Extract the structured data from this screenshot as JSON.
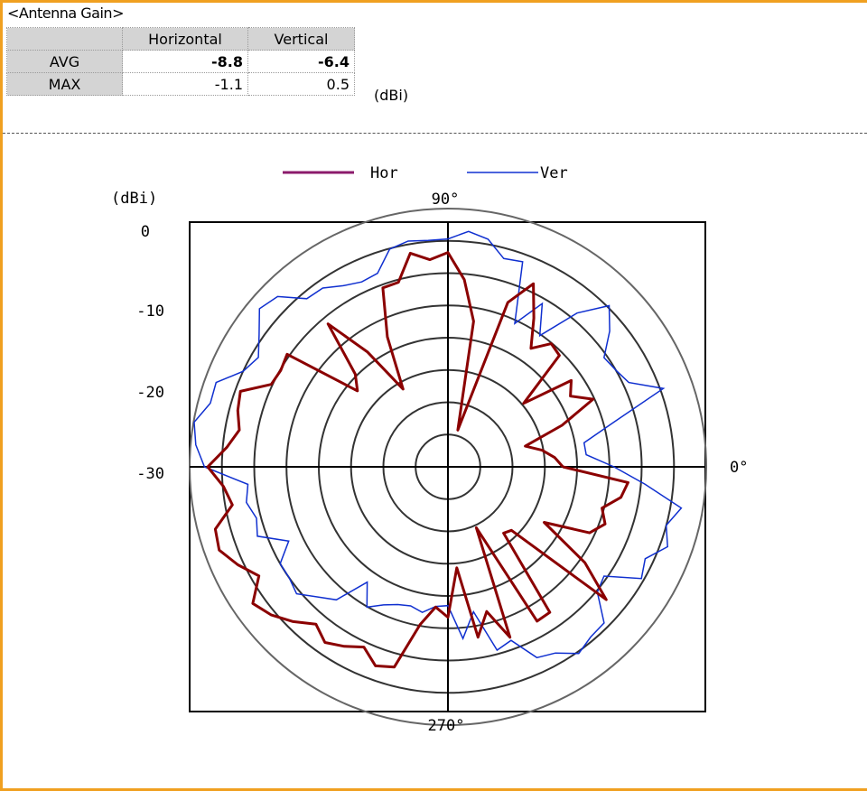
{
  "page": {
    "title": "<Antenna Gain>",
    "table": {
      "headers": [
        "",
        "Horizontal",
        "Vertical"
      ],
      "rows": [
        {
          "label": "AVG",
          "horizontal": "-8.8",
          "vertical": "-6.4"
        },
        {
          "label": "MAX",
          "horizontal": "-1.1",
          "vertical": "0.5"
        }
      ],
      "unit": "(dBi)"
    }
  },
  "chart_data": {
    "type": "polar-line",
    "radial_axis": {
      "label": "(dBi)",
      "ticks": [
        "0",
        "-10",
        "-20",
        "-30"
      ],
      "range": [
        -40,
        0
      ]
    },
    "angle_labels": {
      "0": "0°",
      "90": "90°",
      "270": "270°"
    },
    "colors": {
      "Hor": "#8b0000",
      "Ver": "#1030d0",
      "legend_hor": "#8b1a6b"
    },
    "series": [
      {
        "name": "Hor",
        "points": [
          [
            0,
            -22.2
          ],
          [
            5,
            -23.4
          ],
          [
            10,
            -25.2
          ],
          [
            15,
            -27.6
          ],
          [
            20,
            -21.2
          ],
          [
            25,
            -15.2
          ],
          [
            30,
            -18.1
          ],
          [
            35,
            -16.7
          ],
          [
            40,
            -24.7
          ],
          [
            45,
            -15.6
          ],
          [
            50,
            -15.1
          ],
          [
            55,
            -17.6
          ],
          [
            60,
            -13.4
          ],
          [
            65,
            -8.7
          ],
          [
            70,
            -12.9
          ],
          [
            75,
            -34.1
          ],
          [
            80,
            -17.1
          ],
          [
            85,
            -10.9
          ],
          [
            90,
            -6.8
          ],
          [
            95,
            -7.8
          ],
          [
            100,
            -6.4
          ],
          [
            105,
            -10.4
          ],
          [
            110,
            -10.5
          ],
          [
            115,
            -17.8
          ],
          [
            120,
            -26.1
          ],
          [
            125,
            -18.3
          ],
          [
            130,
            -11.1
          ],
          [
            135,
            -19.7
          ],
          [
            140,
            -21.7
          ],
          [
            145,
            -9.6
          ],
          [
            150,
            -10.1
          ],
          [
            155,
            -9.8
          ],
          [
            160,
            -5.8
          ],
          [
            165,
            -6.3
          ],
          [
            170,
            -7.2
          ],
          [
            175,
            -5.6
          ],
          [
            180,
            -2.8
          ],
          [
            185,
            -5.1
          ],
          [
            190,
            -6.1
          ],
          [
            195,
            -2.7
          ],
          [
            200,
            -2.3
          ],
          [
            205,
            -4.1
          ],
          [
            210,
            -6.2
          ],
          [
            215,
            -3.1
          ],
          [
            220,
            -4.3
          ],
          [
            225,
            -6.1
          ],
          [
            230,
            -8.2
          ],
          [
            235,
            -6.8
          ],
          [
            240,
            -7.9
          ],
          [
            245,
            -9.2
          ],
          [
            250,
            -7.2
          ],
          [
            255,
            -7.9
          ],
          [
            260,
            -15.2
          ],
          [
            265,
            -18.2
          ],
          [
            270,
            -16.7
          ],
          [
            275,
            -24.3
          ],
          [
            280,
            -13.2
          ],
          [
            285,
            -16.8
          ],
          [
            290,
            -11.9
          ],
          [
            295,
            -29.6
          ],
          [
            300,
            -12.4
          ],
          [
            305,
            -12.5
          ],
          [
            310,
            -26.6
          ],
          [
            315,
            -26.1
          ],
          [
            320,
            -8.0
          ],
          [
            325,
            -14.1
          ],
          [
            330,
            -22.8
          ],
          [
            335,
            -15.8
          ],
          [
            340,
            -14.1
          ],
          [
            345,
            -15.3
          ],
          [
            350,
            -12.8
          ],
          [
            355,
            -12.0
          ],
          [
            360,
            -22.2
          ]
        ]
      },
      {
        "name": "Ver",
        "points": [
          [
            0,
            -14.3
          ],
          [
            5,
            -18.5
          ],
          [
            10,
            -18.6
          ],
          [
            15,
            -13.5
          ],
          [
            20,
            -4.5
          ],
          [
            25,
            -9.1
          ],
          [
            30,
            -10.0
          ],
          [
            35,
            -10.5
          ],
          [
            40,
            -7.3
          ],
          [
            45,
            -4.7
          ],
          [
            50,
            -8.9
          ],
          [
            55,
            -15.2
          ],
          [
            60,
            -10.8
          ],
          [
            65,
            -15.5
          ],
          [
            70,
            -6.2
          ],
          [
            75,
            -6.6
          ],
          [
            80,
            -4.2
          ],
          [
            85,
            -3.4
          ],
          [
            90,
            -4.7
          ],
          [
            95,
            -4.8
          ],
          [
            100,
            -4.5
          ],
          [
            105,
            -5.1
          ],
          [
            110,
            -8.1
          ],
          [
            115,
            -8.4
          ],
          [
            120,
            -7.6
          ],
          [
            125,
            -6.2
          ],
          [
            130,
            -6.0
          ],
          [
            135,
            -2.7
          ],
          [
            140,
            -1.9
          ],
          [
            145,
            -4.3
          ],
          [
            150,
            -6.1
          ],
          [
            155,
            -5.0
          ],
          [
            160,
            -1.8
          ],
          [
            165,
            -1.9
          ],
          [
            170,
            -0.1
          ],
          [
            175,
            -0.8
          ],
          [
            180,
            -2.3
          ],
          [
            185,
            -8.9
          ],
          [
            190,
            -8.3
          ],
          [
            195,
            -9.3
          ],
          [
            200,
            -8.6
          ],
          [
            205,
            -12.8
          ],
          [
            210,
            -10.0
          ],
          [
            215,
            -10.0
          ],
          [
            220,
            -9.4
          ],
          [
            225,
            -11.5
          ],
          [
            230,
            -13.1
          ],
          [
            235,
            -18.2
          ],
          [
            240,
            -14.9
          ],
          [
            245,
            -16.4
          ],
          [
            250,
            -17.3
          ],
          [
            255,
            -17.7
          ],
          [
            260,
            -17.1
          ],
          [
            265,
            -18.3
          ],
          [
            270,
            -18.5
          ],
          [
            275,
            -13.3
          ],
          [
            280,
            -17.2
          ],
          [
            285,
            -10.6
          ],
          [
            290,
            -11.4
          ],
          [
            295,
            -7.4
          ],
          [
            300,
            -6.7
          ],
          [
            305,
            -4.7
          ],
          [
            310,
            -5.6
          ],
          [
            315,
            -5.8
          ],
          [
            320,
            -9.8
          ],
          [
            325,
            -10.5
          ],
          [
            330,
            -5.4
          ],
          [
            335,
            -6.3
          ],
          [
            340,
            -3.8
          ],
          [
            345,
            -5.0
          ],
          [
            350,
            -3.3
          ],
          [
            355,
            -9.4
          ],
          [
            360,
            -14.3
          ]
        ]
      }
    ]
  }
}
